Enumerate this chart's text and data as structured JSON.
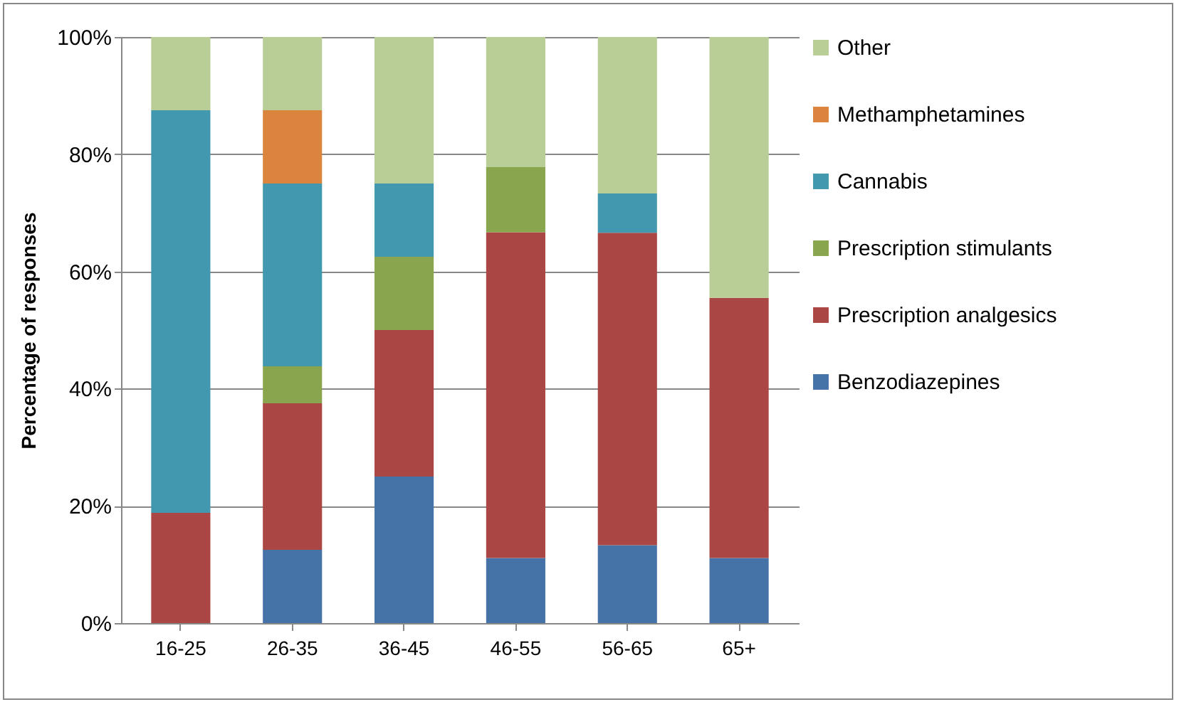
{
  "chart_data": {
    "type": "bar",
    "stacked": true,
    "ylabel": "Percentage of responses",
    "categories": [
      "16-25",
      "26-35",
      "36-45",
      "46-55",
      "56-65",
      "65+"
    ],
    "series": [
      {
        "name": "Benzodiazepines",
        "color": "#4572a7",
        "values": [
          null,
          12.5,
          25,
          11.1,
          13.3,
          11.1
        ]
      },
      {
        "name": "Prescription analgesics",
        "color": "#aa4643",
        "values": [
          18.8,
          25,
          25,
          55.6,
          53.3,
          44.4
        ]
      },
      {
        "name": "Prescription stimulants",
        "color": "#89a54e",
        "values": [
          null,
          6.3,
          12.5,
          11.1,
          null,
          null
        ]
      },
      {
        "name": "Cannabis",
        "color": "#4198af",
        "values": [
          68.7,
          31.2,
          12.5,
          null,
          6.7,
          null
        ]
      },
      {
        "name": "Methamphetamines",
        "color": "#db843d",
        "values": [
          null,
          12.5,
          null,
          null,
          null,
          null
        ]
      },
      {
        "name": "Other",
        "color": "#b9cd96",
        "values": [
          12.5,
          12.5,
          25,
          22.2,
          26.7,
          44.5
        ]
      }
    ],
    "ylim": [
      0,
      100
    ],
    "yticks": [
      {
        "value": 0,
        "label": "0%"
      },
      {
        "value": 20,
        "label": "20%"
      },
      {
        "value": 40,
        "label": "40%"
      },
      {
        "value": 60,
        "label": "60%"
      },
      {
        "value": 80,
        "label": "80%"
      },
      {
        "value": 100,
        "label": "100%"
      }
    ],
    "grid": "y",
    "legend": "right"
  }
}
